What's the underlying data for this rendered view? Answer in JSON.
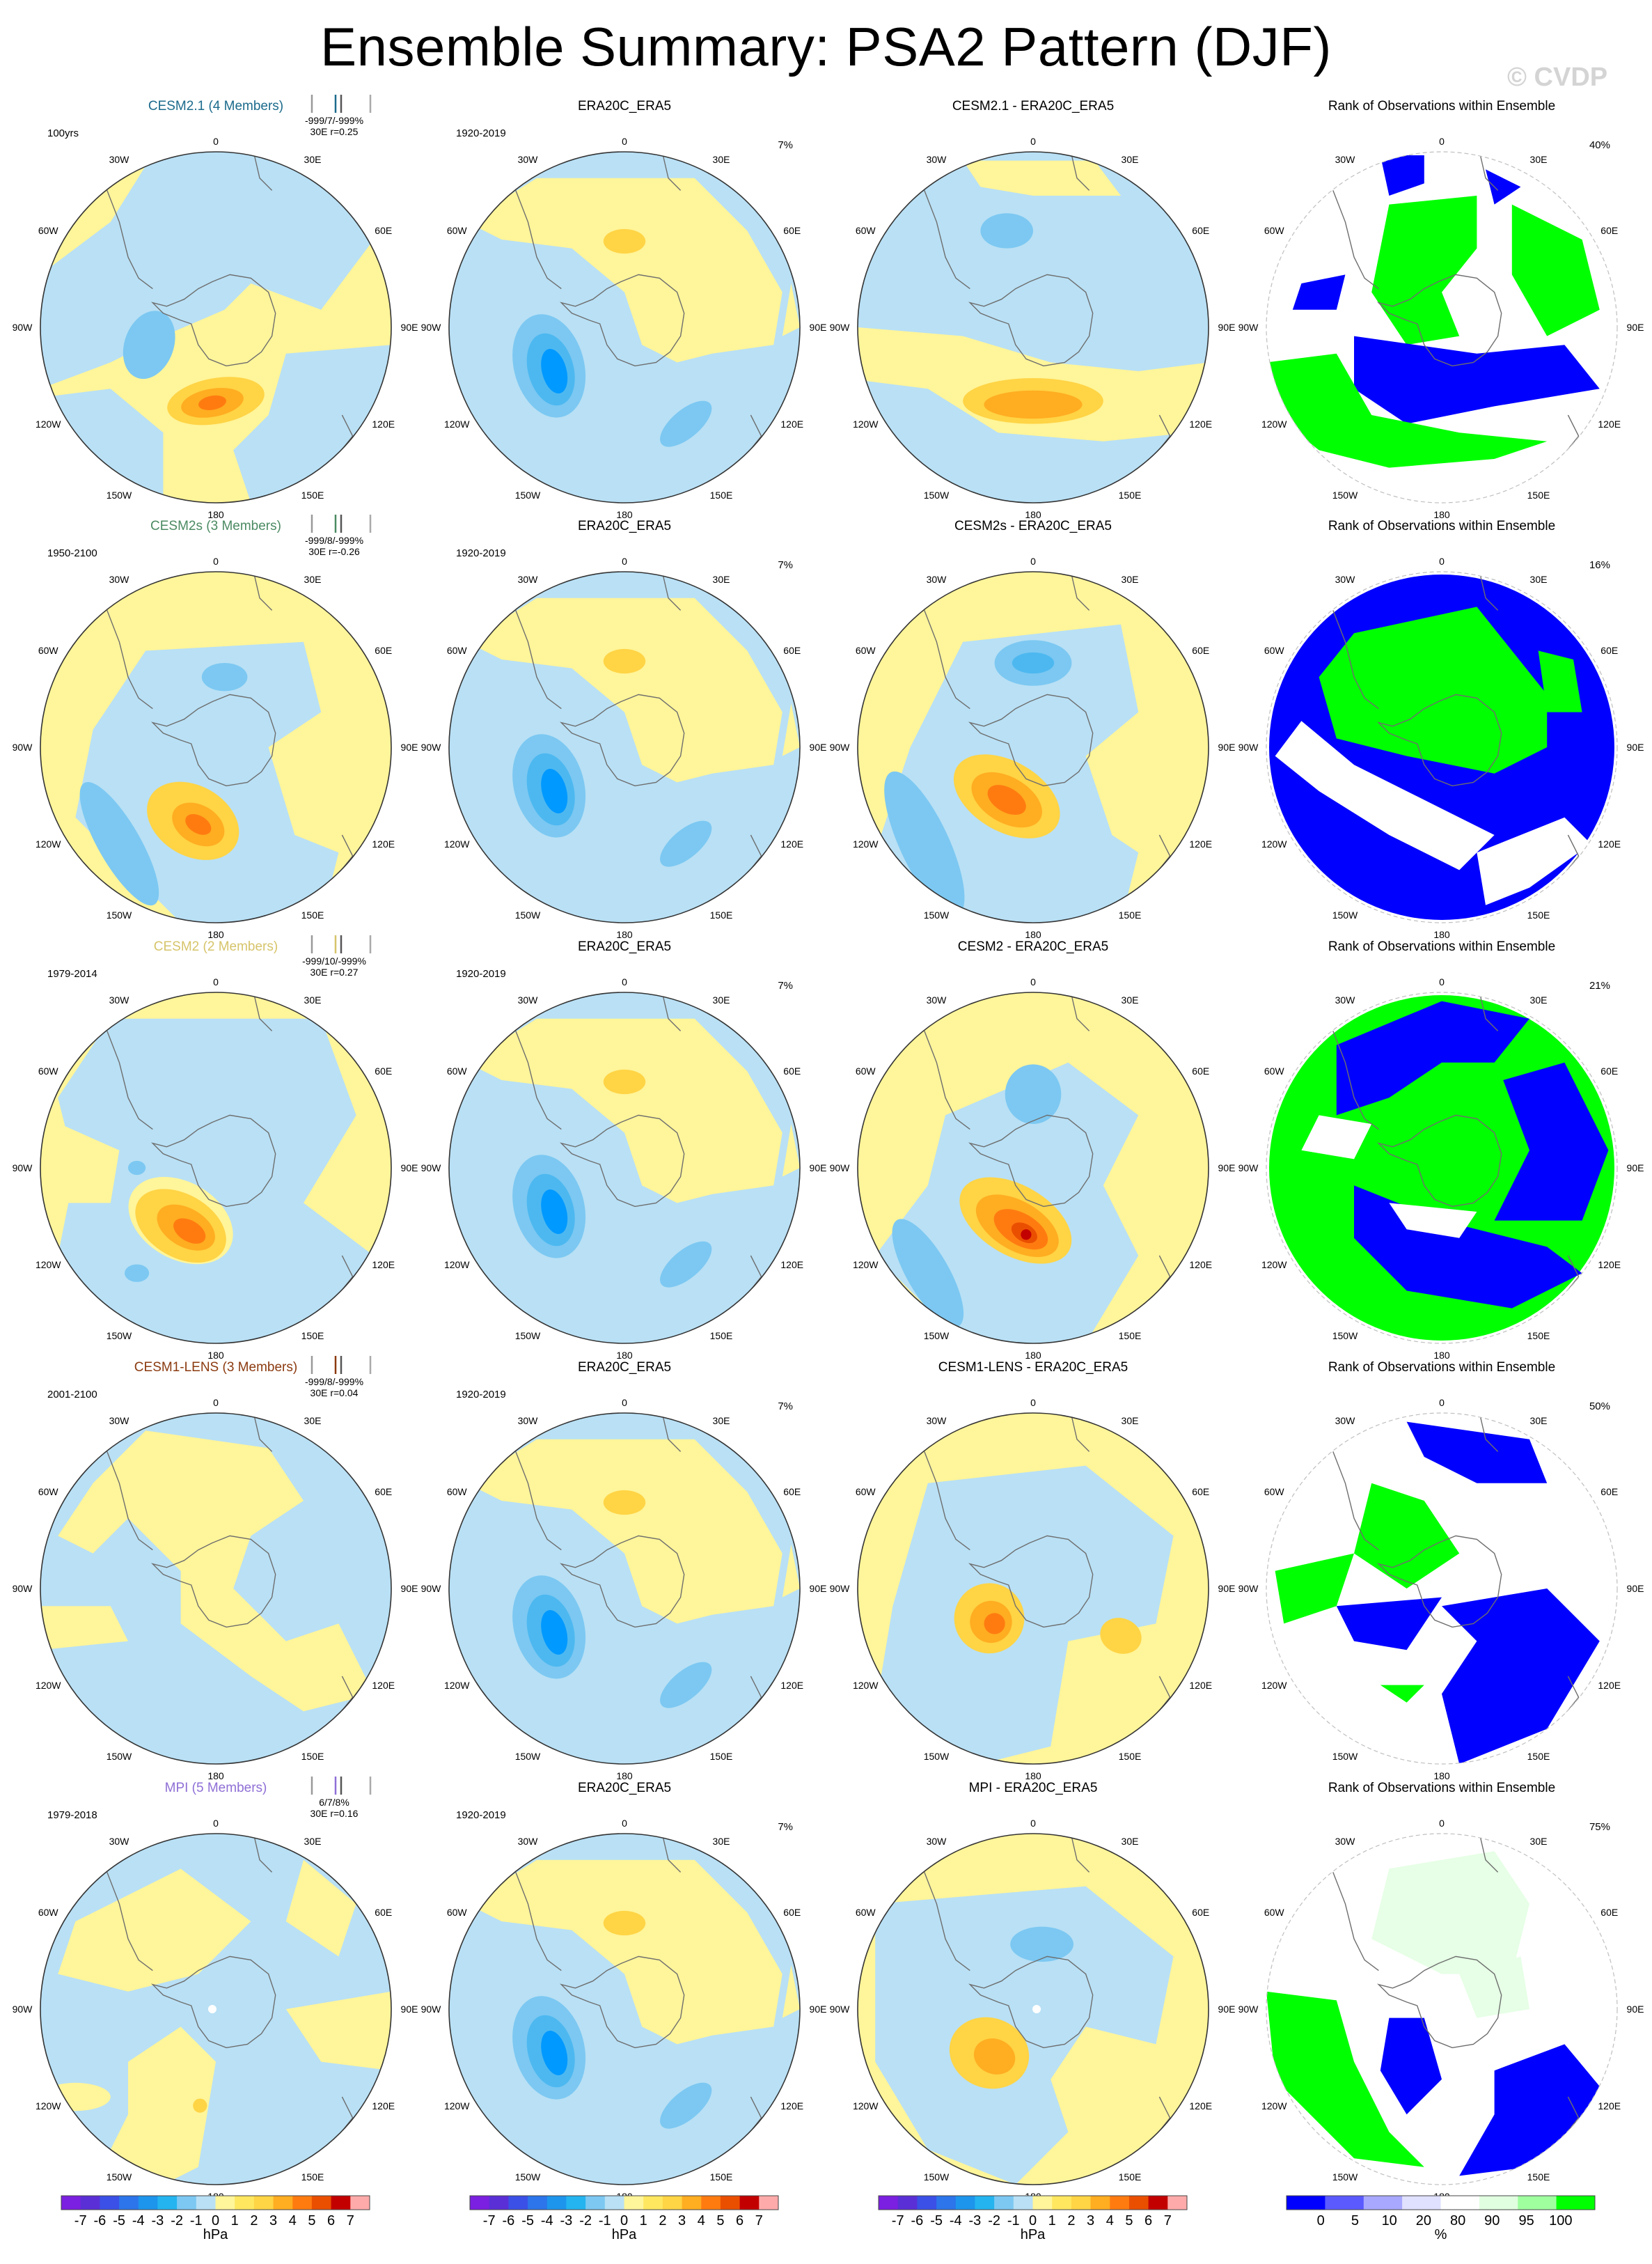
{
  "title": "Ensemble Summary: PSA2 Pattern (DJF)",
  "watermark": "© CVDP",
  "colors": {
    "neg4": "#0099ff",
    "neg3": "#4db8f0",
    "neg2": "#7cc8f2",
    "neg1": "#b9e0f5",
    "pos1": "#fff59a",
    "pos2": "#ffd445",
    "pos3": "#ffad21",
    "pos4": "#ff7b10",
    "pos5": "#ea4f00",
    "pos6": "#c30000",
    "rank_low": "#0000ff",
    "rank_high": "#00ff00",
    "rank_mid": "#e6ffe6"
  },
  "longitude_labels": {
    "top": "0",
    "bottom": "180",
    "left": [
      "30W",
      "60W",
      "90W",
      "120W",
      "150W"
    ],
    "right": [
      "30E",
      "60E",
      "90E",
      "120E",
      "150E"
    ]
  },
  "chart_data": [
    {
      "type": "heatmap",
      "row": 0,
      "panel": "model",
      "title": "CESM2.1 (4 Members)",
      "title_color": "#1c6b8c",
      "period": "100yrs",
      "stats": "-999/7/-999%",
      "stats2": "30E  r=0.25"
    },
    {
      "type": "heatmap",
      "row": 0,
      "panel": "obs",
      "title": "ERA20C_ERA5",
      "period": "1920-2019",
      "pct": "7%"
    },
    {
      "type": "heatmap",
      "row": 0,
      "panel": "diff",
      "title": "CESM2.1 - ERA20C_ERA5"
    },
    {
      "type": "heatmap",
      "row": 0,
      "panel": "rank",
      "title": "Rank of Observations within Ensemble",
      "pct": "40%"
    },
    {
      "type": "heatmap",
      "row": 1,
      "panel": "model",
      "title": "CESM2s (3 Members)",
      "title_color": "#4b8a62",
      "period": "1950-2100",
      "stats": "-999/8/-999%",
      "stats2": "30E  r=-0.26"
    },
    {
      "type": "heatmap",
      "row": 1,
      "panel": "obs",
      "title": "ERA20C_ERA5",
      "period": "1920-2019",
      "pct": "7%"
    },
    {
      "type": "heatmap",
      "row": 1,
      "panel": "diff",
      "title": "CESM2s - ERA20C_ERA5"
    },
    {
      "type": "heatmap",
      "row": 1,
      "panel": "rank",
      "title": "Rank of Observations within Ensemble",
      "pct": "16%"
    },
    {
      "type": "heatmap",
      "row": 2,
      "panel": "model",
      "title": "CESM2 (2 Members)",
      "title_color": "#d6c46a",
      "period": "1979-2014",
      "stats": "-999/10/-999%",
      "stats2": "30E  r=0.27"
    },
    {
      "type": "heatmap",
      "row": 2,
      "panel": "obs",
      "title": "ERA20C_ERA5",
      "period": "1920-2019",
      "pct": "7%"
    },
    {
      "type": "heatmap",
      "row": 2,
      "panel": "diff",
      "title": "CESM2 - ERA20C_ERA5"
    },
    {
      "type": "heatmap",
      "row": 2,
      "panel": "rank",
      "title": "Rank of Observations within Ensemble",
      "pct": "21%"
    },
    {
      "type": "heatmap",
      "row": 3,
      "panel": "model",
      "title": "CESM1-LENS (3 Members)",
      "title_color": "#8b3a0f",
      "period": "2001-2100",
      "stats": "-999/8/-999%",
      "stats2": "30E  r=0.04"
    },
    {
      "type": "heatmap",
      "row": 3,
      "panel": "obs",
      "title": "ERA20C_ERA5",
      "period": "1920-2019",
      "pct": "7%"
    },
    {
      "type": "heatmap",
      "row": 3,
      "panel": "diff",
      "title": "CESM1-LENS - ERA20C_ERA5"
    },
    {
      "type": "heatmap",
      "row": 3,
      "panel": "rank",
      "title": "Rank of Observations within Ensemble",
      "pct": "50%"
    },
    {
      "type": "heatmap",
      "row": 4,
      "panel": "model",
      "title": "MPI (5 Members)",
      "title_color": "#8f6fd6",
      "period": "1979-2018",
      "stats": "6/7/8%",
      "stats2": "30E  r=0.16"
    },
    {
      "type": "heatmap",
      "row": 4,
      "panel": "obs",
      "title": "ERA20C_ERA5",
      "period": "1920-2019",
      "pct": "7%"
    },
    {
      "type": "heatmap",
      "row": 4,
      "panel": "diff",
      "title": "MPI - ERA20C_ERA5"
    },
    {
      "type": "heatmap",
      "row": 4,
      "panel": "rank",
      "title": "Rank of Observations within Ensemble",
      "pct": "75%"
    }
  ],
  "colorbar_hpa": {
    "labels": [
      "-7",
      "-6",
      "-5",
      "-4",
      "-3",
      "-2",
      "-1",
      "0",
      "1",
      "2",
      "3",
      "4",
      "5",
      "6",
      "7"
    ],
    "colors": [
      "#7b1fe0",
      "#5a2fd6",
      "#3b50e6",
      "#2c75ea",
      "#1d95ec",
      "#24b4ef",
      "#7cc8f2",
      "#b9e0f5",
      "#fff59a",
      "#ffe760",
      "#ffd445",
      "#ffad21",
      "#ff7b10",
      "#ea4f00",
      "#c30000",
      "#ffaaaa"
    ],
    "unit": "hPa"
  },
  "colorbar_rank": {
    "labels": [
      "0",
      "5",
      "10",
      "20",
      "80",
      "90",
      "95",
      "100"
    ],
    "colors": [
      "#0000ff",
      "#5a5aff",
      "#a8a8ff",
      "#e0e0ff",
      "#ffffff",
      "#e0ffe0",
      "#9fff9f",
      "#00ff00"
    ],
    "unit": "%"
  }
}
